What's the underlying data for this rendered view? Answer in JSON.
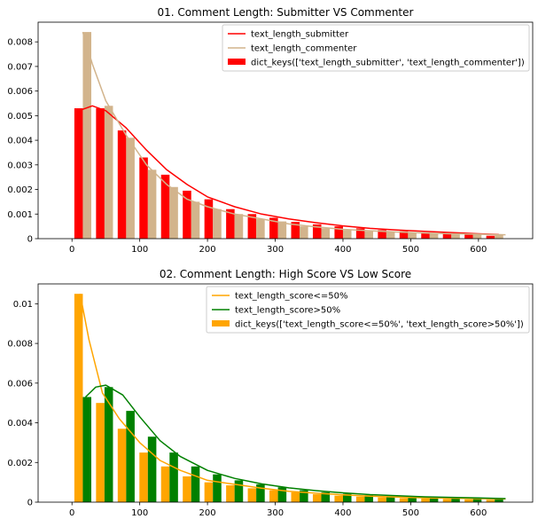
{
  "chart_data": [
    {
      "type": "bar",
      "title": "01. Comment Length: Submitter VS Commenter",
      "xlabel": "",
      "ylabel": "",
      "xlim": [
        -50,
        680
      ],
      "ylim": [
        0,
        0.0088
      ],
      "xticks": [
        0,
        100,
        200,
        300,
        400,
        500,
        600
      ],
      "yticks": [
        0,
        0.001,
        0.002,
        0.003,
        0.004,
        0.005,
        0.006,
        0.007,
        0.008
      ],
      "ytick_labels": [
        "0",
        "0.001",
        "0.002",
        "0.003",
        "0.004",
        "0.005",
        "0.006",
        "0.007",
        "0.008"
      ],
      "legend_position": "top-right",
      "bar_width": 12.5,
      "bins": [
        16,
        48,
        80,
        112,
        144,
        176,
        208,
        240,
        272,
        304,
        336,
        368,
        400,
        432,
        464,
        496,
        528,
        560,
        592,
        624
      ],
      "series": [
        {
          "name": "dict_keys(['text_length_submitter', 'text_length_commenter'])",
          "kind": "bars",
          "colors": [
            "#ff0000",
            "#d2b48c"
          ],
          "groups": [
            [
              0.0053,
              0.0053,
              0.0044,
              0.0033,
              0.0026,
              0.00195,
              0.0016,
              0.0012,
              0.001,
              0.00085,
              0.00068,
              0.00058,
              0.0005,
              0.00042,
              0.00035,
              0.0003,
              0.00025,
              0.00022,
              0.00018,
              0.00012
            ],
            [
              0.0084,
              0.0054,
              0.0041,
              0.0028,
              0.0021,
              0.0015,
              0.0012,
              0.001,
              0.0008,
              0.0007,
              0.0005,
              0.00042,
              0.00035,
              0.0003,
              0.00028,
              0.00025,
              0.00022,
              0.0002,
              0.00018,
              0.00015
            ]
          ]
        },
        {
          "name": "text_length_submitter",
          "kind": "line",
          "color": "#ff0000",
          "x": [
            10,
            30,
            50,
            80,
            110,
            140,
            170,
            200,
            240,
            280,
            320,
            360,
            400,
            440,
            480,
            520,
            560,
            600,
            630
          ],
          "y": [
            0.0052,
            0.0054,
            0.0052,
            0.0045,
            0.0036,
            0.0028,
            0.0022,
            0.0017,
            0.0013,
            0.001,
            0.0008,
            0.00065,
            0.00052,
            0.00042,
            0.00035,
            0.0003,
            0.00025,
            0.0002,
            0.00017
          ]
        },
        {
          "name": "text_length_commenter",
          "kind": "line",
          "color": "#d2b48c",
          "x": [
            16,
            30,
            50,
            80,
            110,
            140,
            170,
            200,
            240,
            280,
            320,
            360,
            400,
            440,
            480,
            520,
            560,
            600,
            640
          ],
          "y": [
            0.0084,
            0.0071,
            0.0056,
            0.0042,
            0.003,
            0.0022,
            0.0016,
            0.0013,
            0.001,
            0.0008,
            0.0006,
            0.00048,
            0.00038,
            0.00032,
            0.00027,
            0.00023,
            0.0002,
            0.00018,
            0.00016
          ]
        }
      ],
      "legend_order": [
        "text_length_submitter",
        "text_length_commenter",
        "dict_keys(['text_length_submitter', 'text_length_commenter'])"
      ]
    },
    {
      "type": "bar",
      "title": "02. Comment Length: High Score VS Low Score",
      "xlabel": "",
      "ylabel": "",
      "xlim": [
        -50,
        680
      ],
      "ylim": [
        0,
        0.011
      ],
      "xticks": [
        0,
        100,
        200,
        300,
        400,
        500,
        600
      ],
      "yticks": [
        0,
        0.002,
        0.004,
        0.006,
        0.008,
        0.01
      ],
      "ytick_labels": [
        "0",
        "0.002",
        "0.004",
        "0.006",
        "0.008",
        "0.01"
      ],
      "legend_position": "top-right",
      "bar_width": 12.5,
      "bins": [
        16,
        48,
        80,
        112,
        144,
        176,
        208,
        240,
        272,
        304,
        336,
        368,
        400,
        432,
        464,
        496,
        528,
        560,
        592,
        624
      ],
      "series": [
        {
          "name": "dict_keys(['text_length_score<=50%', 'text_length_score>50%'])",
          "kind": "bars",
          "colors": [
            "#ffa500",
            "#008000"
          ],
          "groups": [
            [
              0.0105,
              0.005,
              0.0037,
              0.0025,
              0.0018,
              0.0013,
              0.001,
              0.00085,
              0.0007,
              0.0006,
              0.0005,
              0.0004,
              0.00033,
              0.00028,
              0.00024,
              0.0002,
              0.00018,
              0.00016,
              0.00014,
              0.00012
            ],
            [
              0.0053,
              0.0058,
              0.0046,
              0.0033,
              0.0025,
              0.0018,
              0.0014,
              0.0011,
              0.0009,
              0.00075,
              0.0006,
              0.0005,
              0.00042,
              0.00035,
              0.0003,
              0.00026,
              0.00023,
              0.0002,
              0.00018,
              0.00016
            ]
          ]
        },
        {
          "name": "text_length_score<=50%",
          "kind": "line",
          "color": "#ffa500",
          "x": [
            12,
            25,
            45,
            70,
            100,
            130,
            160,
            200,
            240,
            280,
            320,
            360,
            400,
            440,
            480,
            520,
            560,
            600,
            640
          ],
          "y": [
            0.0105,
            0.0082,
            0.0055,
            0.0042,
            0.003,
            0.0021,
            0.0016,
            0.0011,
            0.0009,
            0.0007,
            0.00055,
            0.00045,
            0.00037,
            0.0003,
            0.00026,
            0.00022,
            0.0002,
            0.00018,
            0.00016
          ]
        },
        {
          "name": "text_length_score>50%",
          "kind": "line",
          "color": "#008000",
          "x": [
            20,
            35,
            50,
            75,
            100,
            130,
            160,
            200,
            240,
            280,
            320,
            360,
            400,
            440,
            480,
            520,
            560,
            600,
            640
          ],
          "y": [
            0.0053,
            0.0058,
            0.0059,
            0.0054,
            0.0043,
            0.0031,
            0.0023,
            0.0016,
            0.0012,
            0.00092,
            0.00072,
            0.00058,
            0.00047,
            0.00038,
            0.00032,
            0.00027,
            0.00024,
            0.00021,
            0.00018
          ]
        }
      ],
      "legend_order": [
        "text_length_score<=50%",
        "text_length_score>50%",
        "dict_keys(['text_length_score<=50%', 'text_length_score>50%'])"
      ]
    }
  ]
}
